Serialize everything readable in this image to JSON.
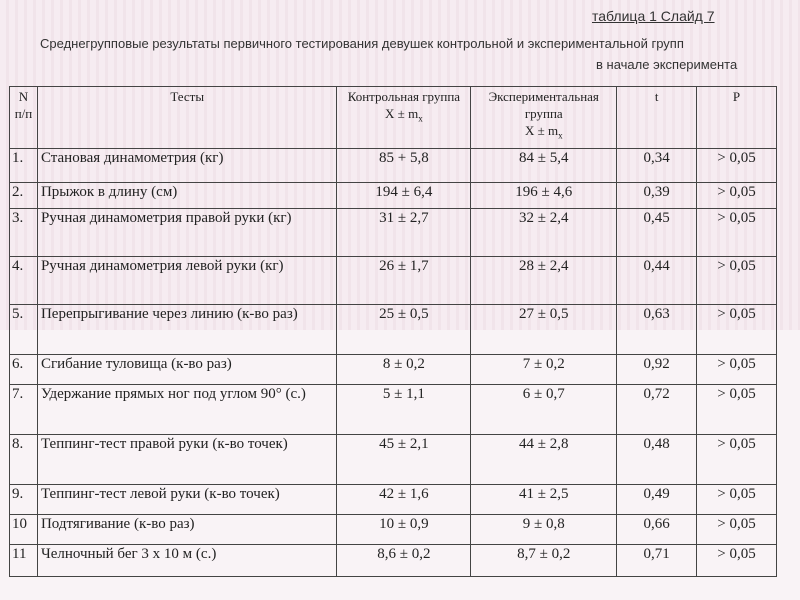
{
  "slide_ref": "таблица 1   Слайд 7",
  "caption": {
    "line1": "Среднегрупповые результаты первичного тестирования девушек контрольной и экспериментальной групп",
    "line2": "в начале эксперимента"
  },
  "table": {
    "headers": {
      "num_line1": "N",
      "num_line2": "п/п",
      "tests": "Тесты",
      "control_line1": "Контрольная группа",
      "control_line2": "X  ± m",
      "control_sub": "x",
      "exp_line1": "Экспериментальная",
      "exp_line2": "группа",
      "exp_line3": "X  ± m",
      "exp_sub": "x",
      "t": "t",
      "p": "P"
    },
    "rows": [
      {
        "num": "1.",
        "test": "Становая динамометрия (кг)",
        "control": "85 + 5,8",
        "exp": "84 ± 5,4",
        "t": "0,34",
        "p": "> 0,05"
      },
      {
        "num": "2.",
        "test": "Прыжок в длину (см)",
        "control": "194 ± 6,4",
        "exp": "196 ± 4,6",
        "t": "0,39",
        "p": "> 0,05"
      },
      {
        "num": "3.",
        "test": "Ручная динамометрия правой руки (кг)",
        "control": "31 ± 2,7",
        "exp": "32 ± 2,4",
        "t": "0,45",
        "p": "> 0,05"
      },
      {
        "num": "4.",
        "test": "Ручная динамометрия левой руки (кг)",
        "control": "26 ± 1,7",
        "exp": "28 ± 2,4",
        "t": "0,44",
        "p": "> 0,05"
      },
      {
        "num": "5.",
        "test": "Перепрыгивание через линию (к-во раз)",
        "control": "25 ± 0,5",
        "exp": "27 ± 0,5",
        "t": "0,63",
        "p": "> 0,05"
      },
      {
        "num": "6.",
        "test": "Сгибание туловища (к-во раз)",
        "control": "8 ± 0,2",
        "exp": "7 ± 0,2",
        "t": "0,92",
        "p": "> 0,05"
      },
      {
        "num": "7.",
        "test": "Удержание прямых ног под углом 90° (с.)",
        "control": "5 ± 1,1",
        "exp": "6 ± 0,7",
        "t": "0,72",
        "p": "> 0,05"
      },
      {
        "num": "8.",
        "test": "Теппинг-тест правой руки (к-во точек)",
        "control": "45 ± 2,1",
        "exp": "44 ± 2,8",
        "t": "0,48",
        "p": "> 0,05"
      },
      {
        "num": "9.",
        "test": "Теппинг-тест левой руки (к-во точек)",
        "control": "42 ± 1,6",
        "exp": "41 ± 2,5",
        "t": "0,49",
        "p": "> 0,05"
      },
      {
        "num": "10",
        "test": "Подтягивание (к-во раз)",
        "control": "10 ± 0,9",
        "exp": "9 ± 0,8",
        "t": "0,66",
        "p": "> 0,05"
      },
      {
        "num": "11",
        "test": "Челночный бег 3 х 10 м (с.)",
        "control": "8,6 ± 0,2",
        "exp": "8,7 ± 0,2",
        "t": "0,71",
        "p": "> 0,05"
      }
    ]
  }
}
